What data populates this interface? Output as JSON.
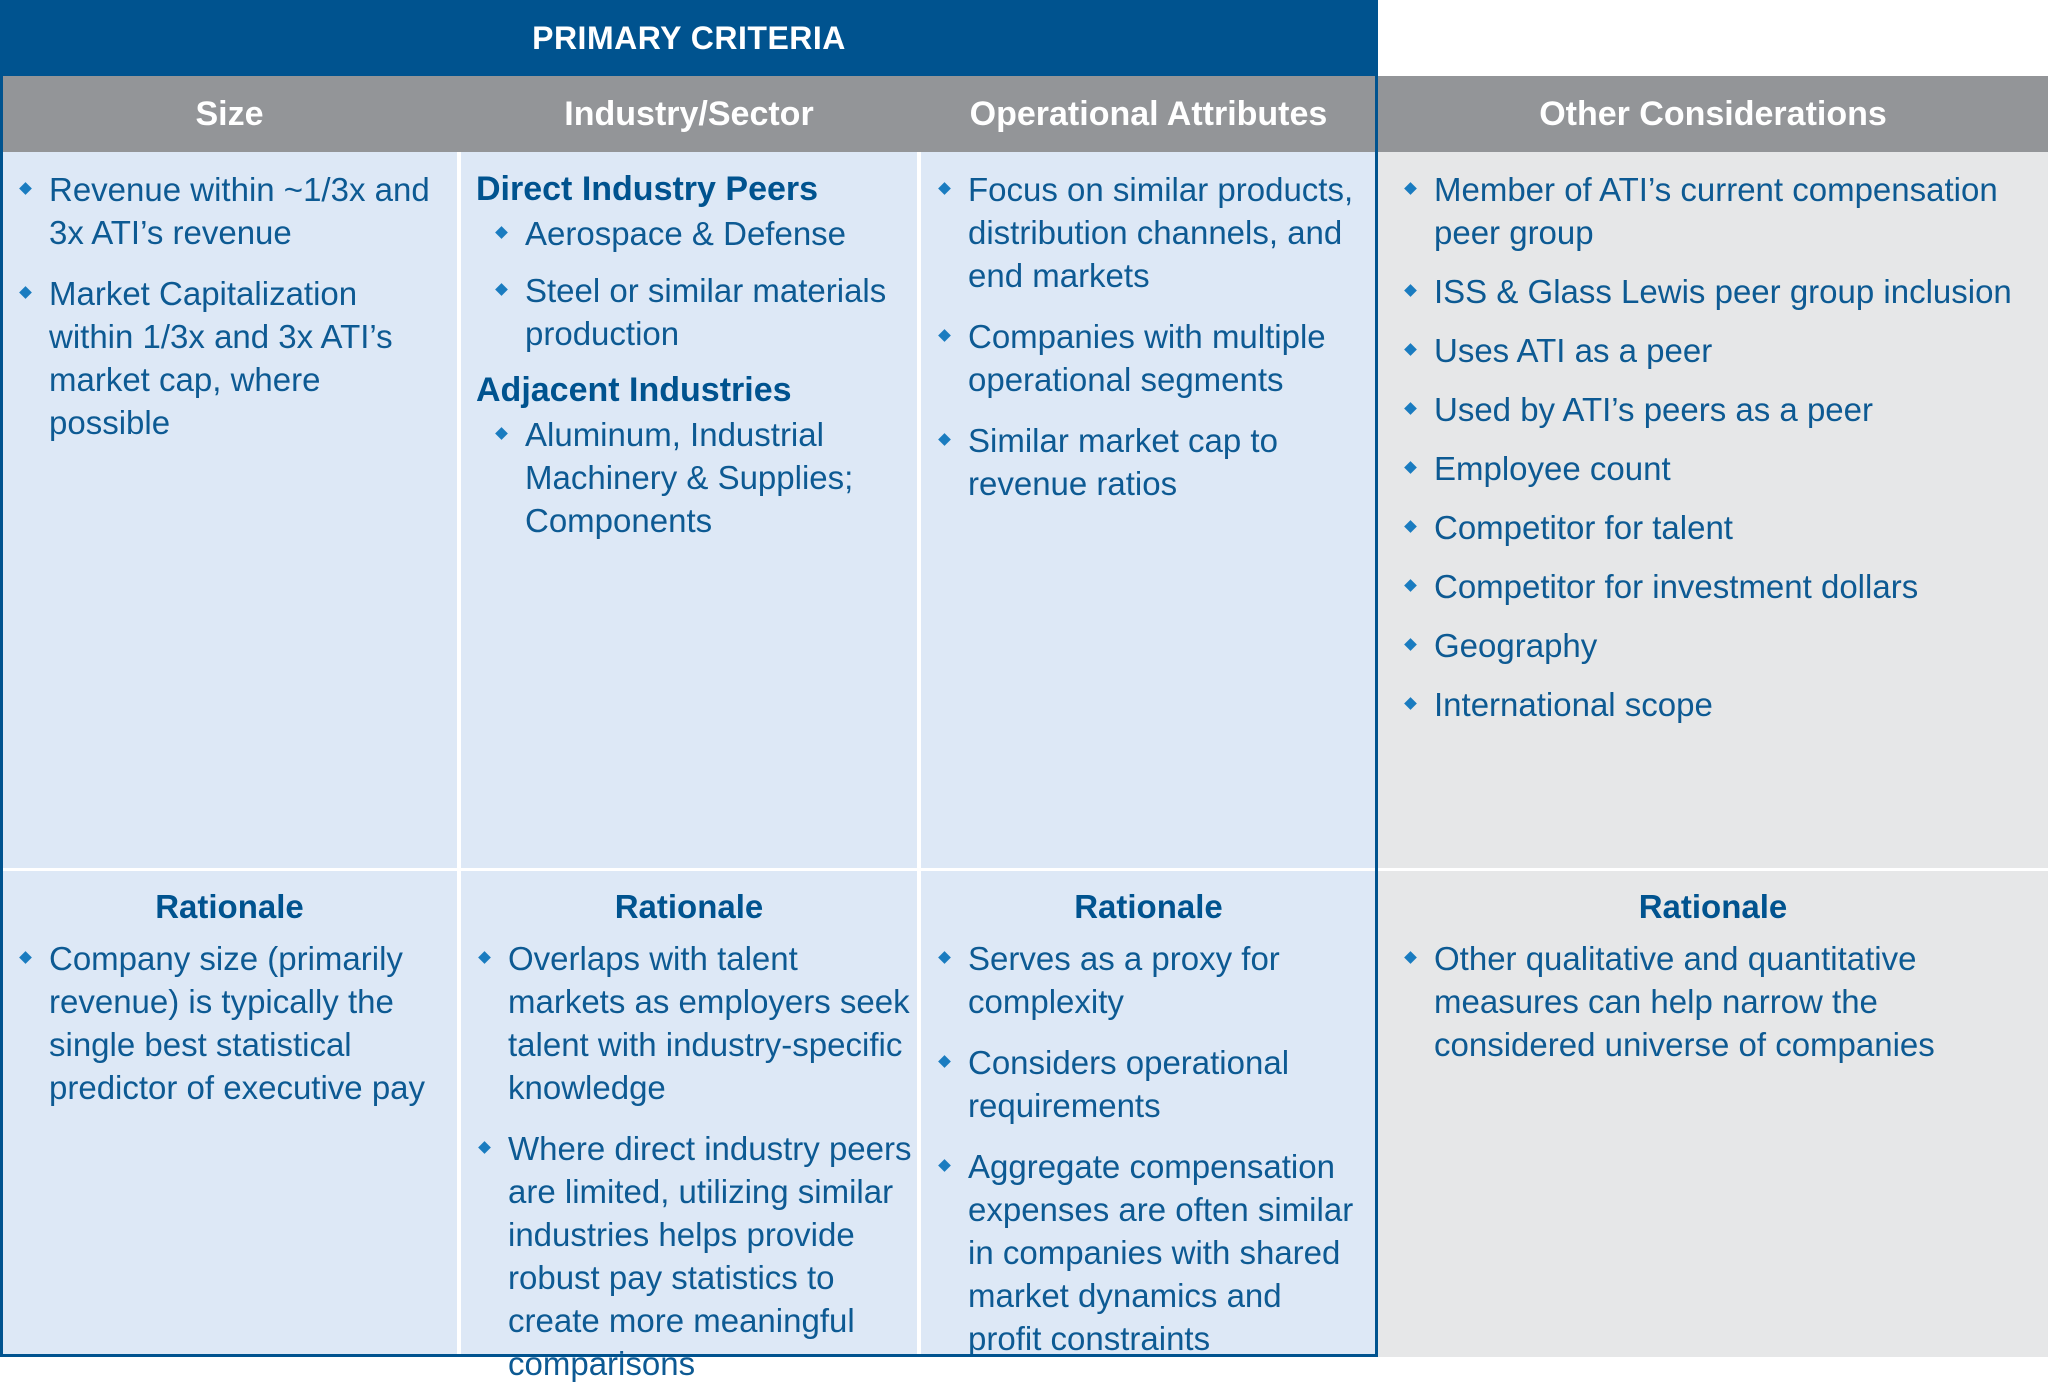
{
  "banner": {
    "title": "PRIMARY CRITERIA"
  },
  "columns": {
    "size": {
      "header": "Size",
      "criteria": [
        "Revenue within ~1/3x and 3x ATI’s revenue",
        "Market Capitalization within 1/3x and 3x ATI’s market cap, where possible"
      ],
      "rationale_title": "Rationale",
      "rationale": [
        "Company size (primarily revenue) is typically the single best statistical predictor of executive pay"
      ]
    },
    "industry": {
      "header": "Industry/Sector",
      "group1_title": "Direct Industry Peers",
      "group1": [
        "Aerospace & Defense",
        "Steel or similar materials production"
      ],
      "group2_title": "Adjacent Industries",
      "group2": [
        "Aluminum, Industrial Machinery & Supplies; Components"
      ],
      "rationale_title": "Rationale",
      "rationale": [
        "Overlaps with talent markets as employers seek talent with industry-specific knowledge",
        "Where direct industry peers are limited, utilizing similar industries helps provide robust pay statistics to create more meaningful comparisons"
      ]
    },
    "operational": {
      "header": "Operational Attributes",
      "criteria": [
        "Focus on similar products, distribution channels, and end markets",
        "Companies with multiple operational segments",
        "Similar market cap to revenue ratios"
      ],
      "rationale_title": "Rationale",
      "rationale": [
        "Serves as a proxy for complexity",
        "Considers operational requirements",
        "Aggregate compensation expenses are often similar in companies with shared market dynamics and profit constraints"
      ]
    },
    "other": {
      "header": "Other Considerations",
      "criteria": [
        "Member of ATI’s current compensation peer group",
        "ISS & Glass Lewis peer group inclusion",
        "Uses ATI as a peer",
        "Used by ATI’s peers as a peer",
        "Employee count",
        "Competitor for talent",
        "Competitor for investment dollars",
        "Geography",
        "International scope"
      ],
      "rationale_title": "Rationale",
      "rationale": [
        "Other qualitative and quantitative measures can help narrow the considered universe of companies"
      ]
    }
  },
  "colors": {
    "primary_blue": "#00538f",
    "header_gray": "#939598",
    "cell_blue": "#dde8f6",
    "cell_gray": "#e6e7e8",
    "text_blue": "#0d5a93",
    "bullet_blue": "#1a7cc0"
  }
}
